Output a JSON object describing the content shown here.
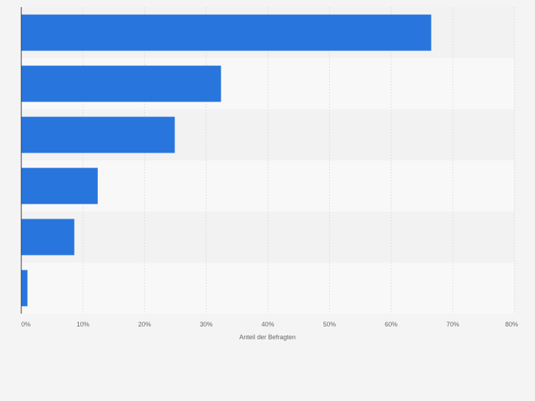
{
  "chart_data": {
    "type": "bar",
    "orientation": "horizontal",
    "categories": [
      "",
      "",
      "",
      "",
      "",
      ""
    ],
    "values": [
      66.5,
      32.4,
      24.9,
      12.4,
      8.6,
      1.0
    ],
    "xlabel": "Anteil der Befragten",
    "xlim": [
      0,
      80
    ],
    "x_ticks": [
      "0%",
      "10%",
      "20%",
      "30%",
      "40%",
      "50%",
      "60%",
      "70%",
      "80%"
    ],
    "grid": true,
    "legend": "none",
    "colors": {
      "bar": "#2876dd",
      "band_dark": "#f2f2f2",
      "band_light": "#f8f8f8",
      "grid": "#dddddd",
      "axis": "#333333",
      "tick_text": "#666666"
    }
  }
}
